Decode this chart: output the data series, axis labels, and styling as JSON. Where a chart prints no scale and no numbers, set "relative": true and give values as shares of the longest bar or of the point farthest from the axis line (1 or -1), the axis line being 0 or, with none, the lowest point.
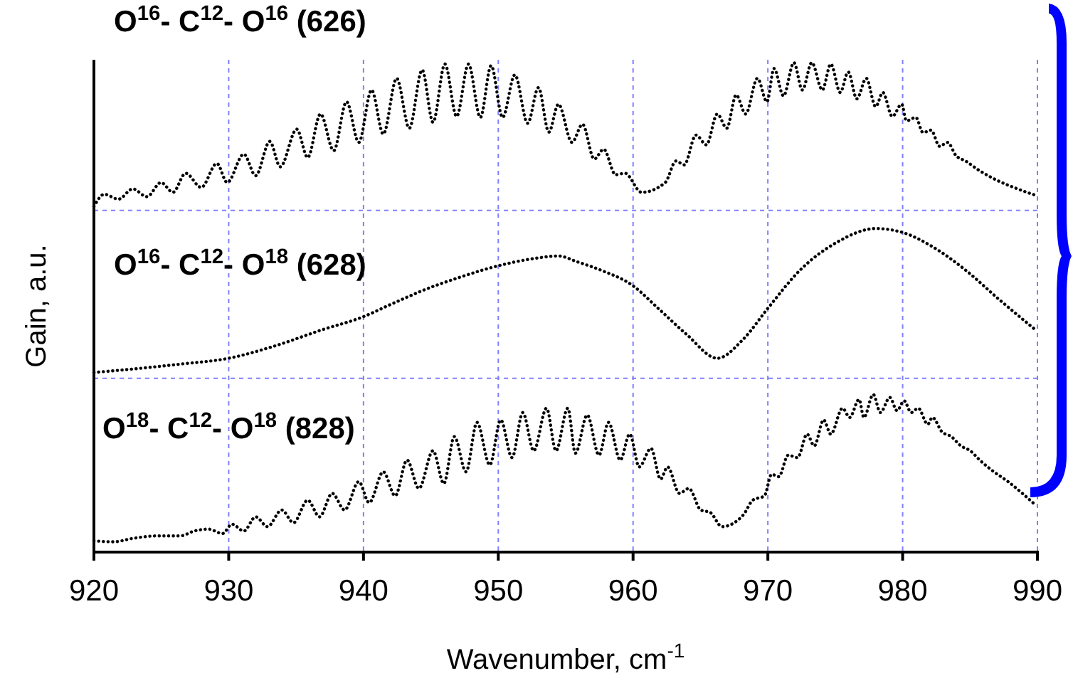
{
  "chart_data": {
    "type": "line",
    "relative": true,
    "xlabel": "Wavenumber, cm$^{-1}$",
    "ylabel": "Gain, a.u.",
    "xlim": [
      920,
      990
    ],
    "xticks": [
      920,
      930,
      940,
      950,
      960,
      970,
      980,
      990
    ],
    "grid": "x",
    "line_style": "dotted",
    "marker": "none",
    "ref_lines": [
      {
        "axis": "y",
        "value": 0.355,
        "color": "#8080ff",
        "line_style": "dashed"
      },
      {
        "axis": "y",
        "value": 0.698,
        "color": "#8080ff",
        "line_style": "dashed"
      }
    ],
    "series": [
      {
        "name": "O$^{16}$- C$^{12}$- O$^{16}$ (626)",
        "color": "#000000",
        "x": [
          920.0,
          920.77,
          921.82,
          922.88,
          923.93,
          924.98,
          925.86,
          926.81,
          927.96,
          929.12,
          929.89,
          931.12,
          932.0,
          933.05,
          933.82,
          935.05,
          935.86,
          936.81,
          937.79,
          938.74,
          939.65,
          940.6,
          941.47,
          942.46,
          943.4,
          944.35,
          945.16,
          946.04,
          946.91,
          947.79,
          948.67,
          949.47,
          950.32,
          951.23,
          952.18,
          952.98,
          953.75,
          954.46,
          955.47,
          956.25,
          957.12,
          957.82,
          958.7,
          959.4,
          960.63,
          962.39,
          963.19,
          963.79,
          964.67,
          965.44,
          966.25,
          966.95,
          967.65,
          968.35,
          969.23,
          969.93,
          970.46,
          971.16,
          971.93,
          972.56,
          973.26,
          974.04,
          974.67,
          975.37,
          975.96,
          976.6,
          977.3,
          978.0,
          978.53,
          979.23,
          979.93,
          980.28,
          980.98,
          981.51,
          982.11,
          982.74,
          983.33,
          983.96,
          984.67,
          985.72,
          987.12,
          988.53,
          989.86
        ],
        "values": [
          0.706,
          0.731,
          0.721,
          0.742,
          0.726,
          0.755,
          0.735,
          0.774,
          0.745,
          0.794,
          0.755,
          0.813,
          0.769,
          0.839,
          0.787,
          0.864,
          0.806,
          0.895,
          0.82,
          0.92,
          0.837,
          0.944,
          0.854,
          0.968,
          0.866,
          0.985,
          0.878,
          0.997,
          0.89,
          0.997,
          0.888,
          0.994,
          0.888,
          0.975,
          0.876,
          0.949,
          0.858,
          0.915,
          0.837,
          0.874,
          0.803,
          0.823,
          0.771,
          0.774,
          0.735,
          0.755,
          0.799,
          0.791,
          0.852,
          0.832,
          0.895,
          0.866,
          0.934,
          0.895,
          0.968,
          0.92,
          0.988,
          0.932,
          1.0,
          0.944,
          1.0,
          0.944,
          0.997,
          0.939,
          0.981,
          0.926,
          0.968,
          0.91,
          0.939,
          0.89,
          0.915,
          0.881,
          0.888,
          0.857,
          0.862,
          0.829,
          0.837,
          0.81,
          0.799,
          0.779,
          0.758,
          0.742,
          0.729
        ]
      },
      {
        "name": "O$^{16}$- C$^{12}$- O$^{18}$ (628)",
        "color": "#000000",
        "x": [
          920.0,
          922.88,
          926.39,
          930.0,
          933.4,
          936.91,
          940.0,
          942.18,
          944.63,
          947.09,
          950.0,
          952.7,
          954.46,
          955.86,
          957.61,
          960.0,
          961.86,
          963.96,
          966.25,
          968.18,
          970.0,
          972.39,
          975.19,
          978.0,
          980.0,
          982.21,
          984.67,
          987.12,
          989.86
        ],
        "values": [
          0.367,
          0.374,
          0.384,
          0.396,
          0.421,
          0.454,
          0.481,
          0.508,
          0.537,
          0.561,
          0.585,
          0.6,
          0.605,
          0.593,
          0.576,
          0.544,
          0.498,
          0.445,
          0.396,
          0.435,
          0.498,
          0.576,
          0.634,
          0.661,
          0.653,
          0.624,
          0.576,
          0.517,
          0.454
        ]
      },
      {
        "name": "O$^{18}$- C$^{12}$- O$^{18}$ (828)",
        "color": "#000000",
        "x": [
          920.0,
          921.47,
          922.88,
          924.63,
          926.39,
          927.44,
          928.49,
          929.54,
          930.25,
          931.12,
          932.0,
          932.88,
          933.93,
          934.81,
          935.86,
          936.74,
          937.68,
          938.6,
          939.65,
          940.42,
          941.47,
          942.35,
          943.23,
          944.11,
          945.16,
          945.96,
          946.74,
          947.61,
          948.42,
          949.37,
          950.18,
          951.02,
          951.82,
          952.63,
          953.58,
          954.28,
          955.16,
          955.72,
          956.6,
          957.47,
          958.18,
          959.05,
          959.75,
          960.46,
          961.33,
          962.04,
          962.56,
          963.44,
          964.14,
          965.02,
          965.72,
          966.6,
          968.18,
          968.88,
          969.75,
          970.28,
          970.81,
          971.51,
          972.21,
          972.91,
          973.44,
          974.14,
          974.67,
          975.54,
          976.07,
          976.77,
          977.12,
          977.82,
          978.35,
          979.05,
          979.58,
          980.11,
          980.63,
          981.16,
          981.86,
          982.21,
          982.91,
          983.61,
          984.32,
          985.02,
          985.72,
          986.77,
          987.82,
          988.88,
          989.86
        ],
        "values": [
          0.023,
          0.021,
          0.028,
          0.033,
          0.033,
          0.043,
          0.047,
          0.038,
          0.057,
          0.043,
          0.072,
          0.052,
          0.086,
          0.06,
          0.106,
          0.072,
          0.12,
          0.086,
          0.144,
          0.101,
          0.164,
          0.115,
          0.188,
          0.13,
          0.207,
          0.14,
          0.236,
          0.164,
          0.265,
          0.178,
          0.27,
          0.193,
          0.285,
          0.207,
          0.294,
          0.207,
          0.294,
          0.202,
          0.28,
          0.198,
          0.265,
          0.188,
          0.241,
          0.174,
          0.212,
          0.149,
          0.174,
          0.12,
          0.13,
          0.086,
          0.081,
          0.052,
          0.076,
          0.106,
          0.115,
          0.159,
          0.154,
          0.198,
          0.193,
          0.241,
          0.217,
          0.27,
          0.241,
          0.294,
          0.275,
          0.312,
          0.275,
          0.322,
          0.285,
          0.316,
          0.289,
          0.309,
          0.285,
          0.294,
          0.261,
          0.275,
          0.246,
          0.236,
          0.217,
          0.207,
          0.188,
          0.164,
          0.144,
          0.12,
          0.096
        ]
      }
    ]
  }
}
